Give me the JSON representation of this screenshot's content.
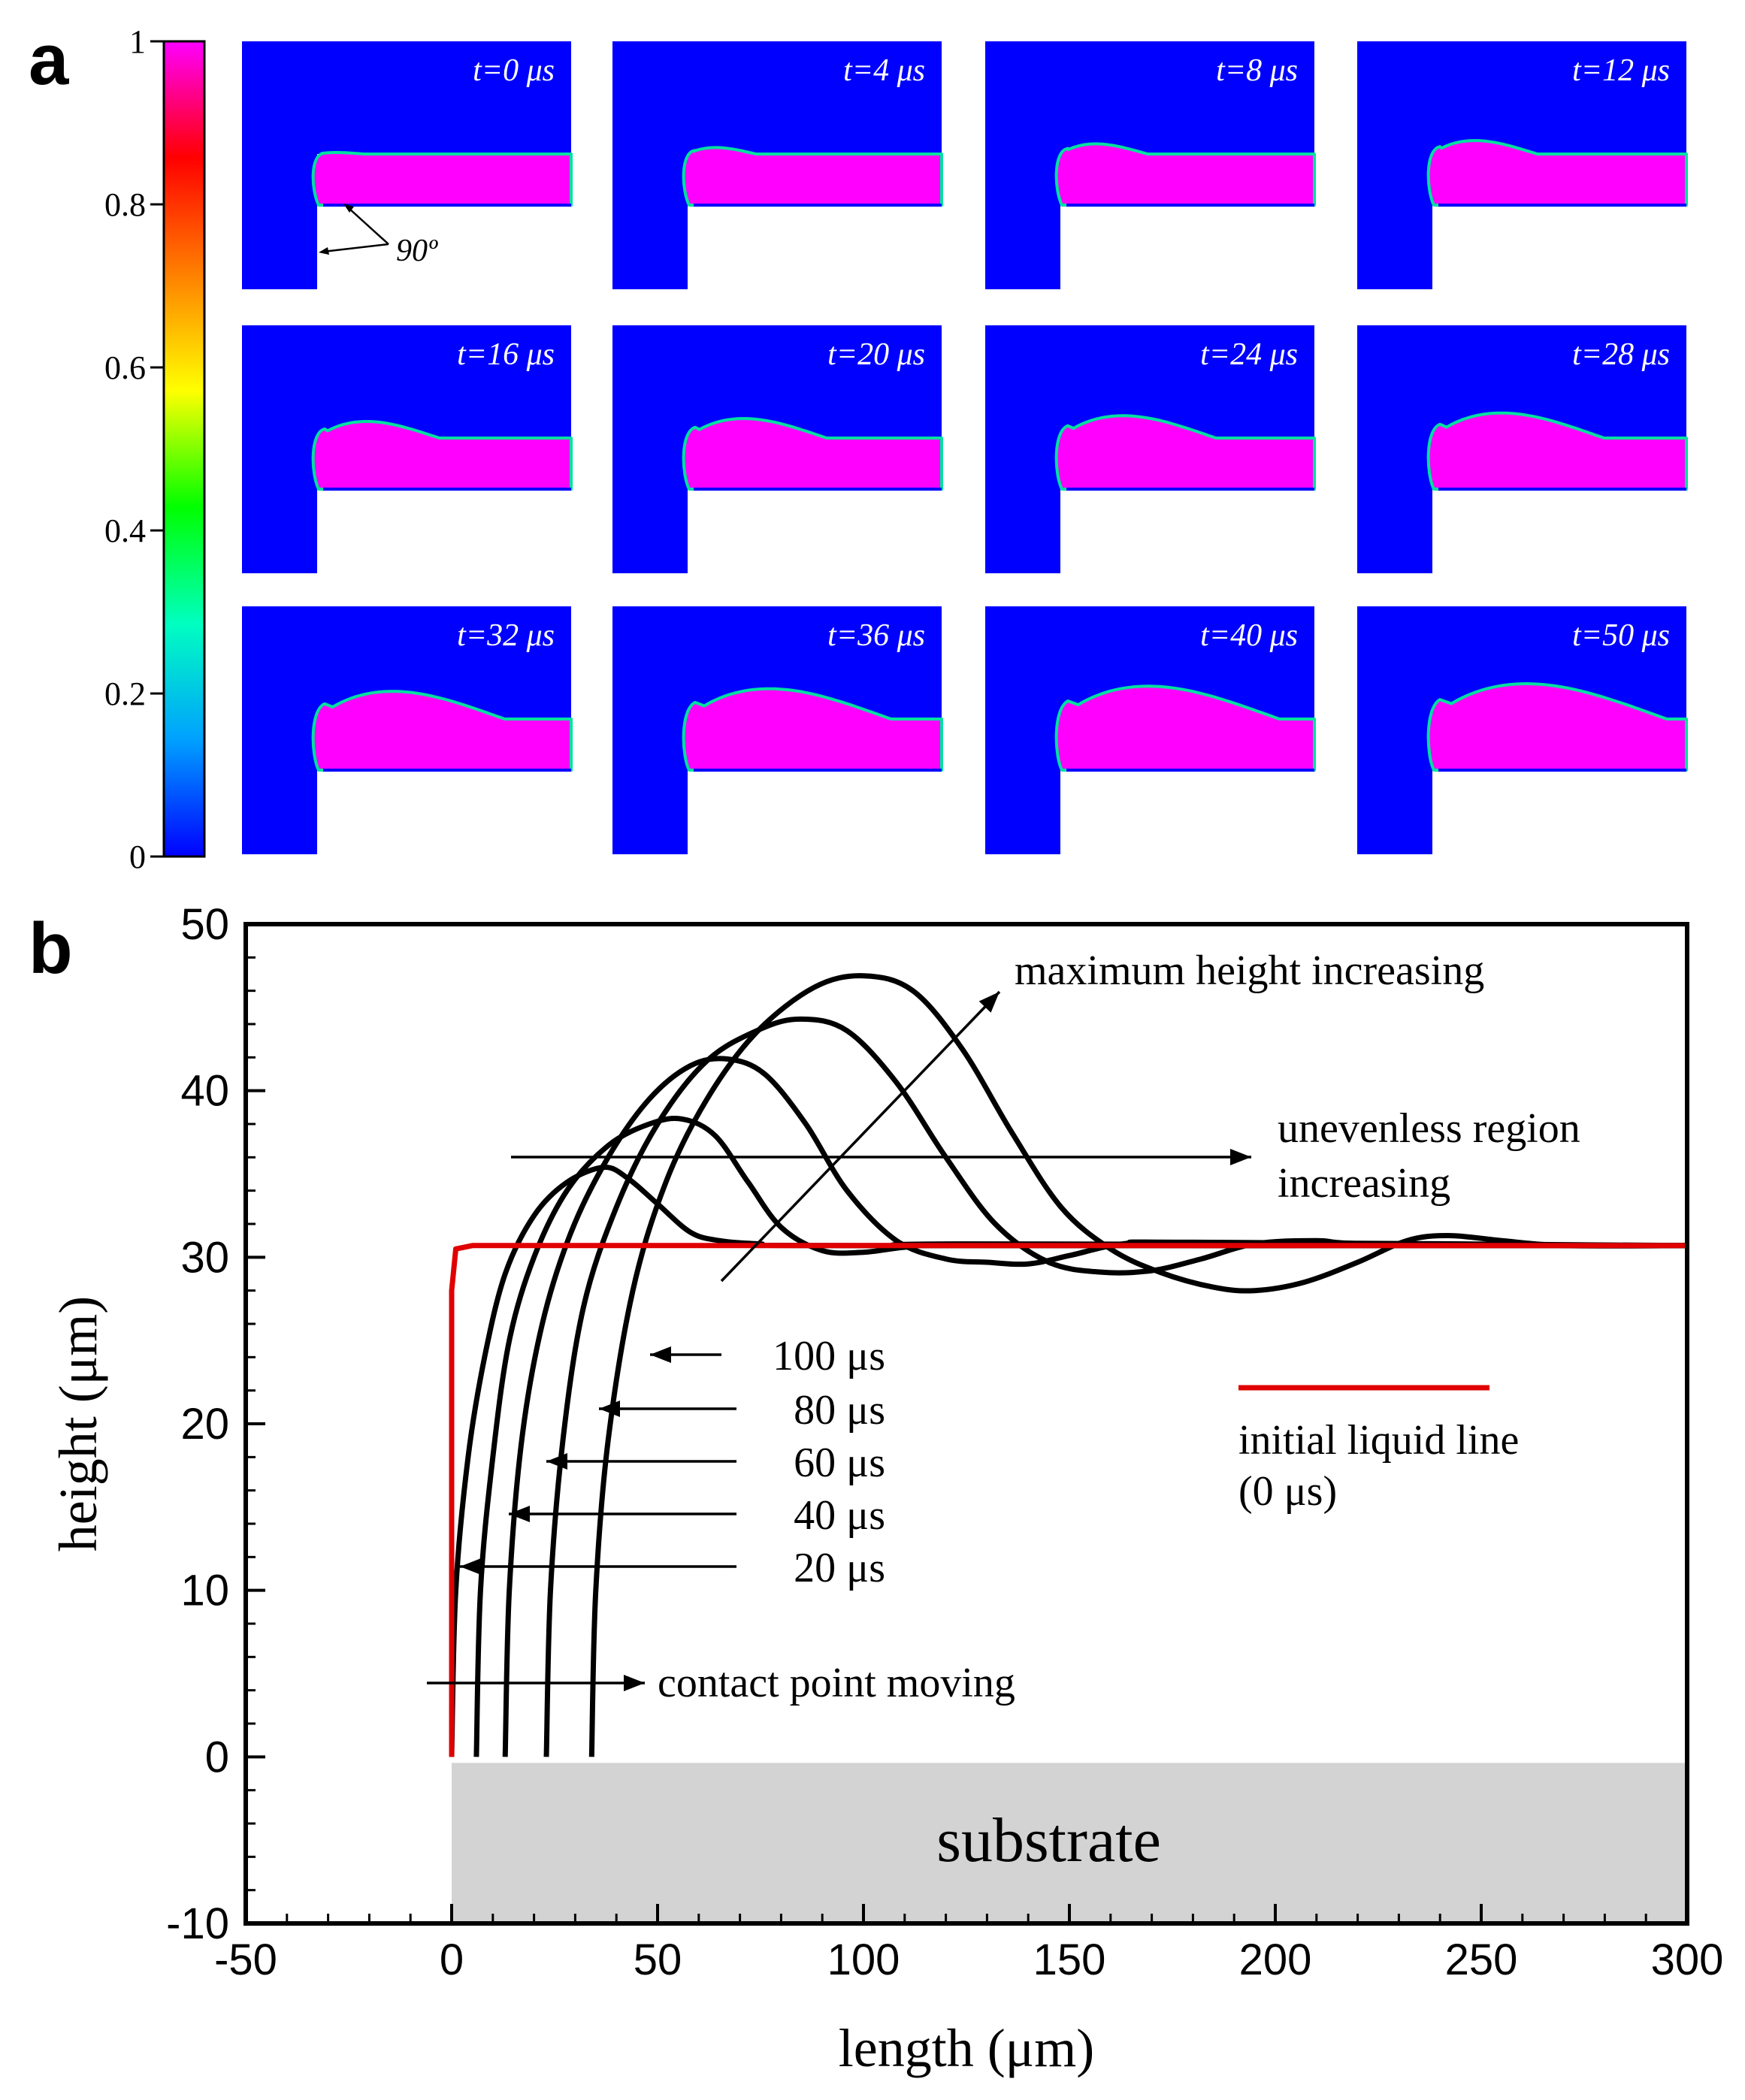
{
  "panel_a": {
    "letter": "a",
    "colorbar": {
      "ticks": [
        "0",
        "0.2",
        "0.4",
        "0.6",
        "0.8",
        "1"
      ],
      "stops": [
        "#0000ff",
        "#00a0ff",
        "#00ffc0",
        "#00ff00",
        "#ffff00",
        "#ff8000",
        "#ff0000",
        "#ff00ff"
      ]
    },
    "snapshot_times": [
      "t=0 μs",
      "t=4 μs",
      "t=8 μs",
      "t=12 μs",
      "t=16 μs",
      "t=20 μs",
      "t=24 μs",
      "t=28 μs",
      "t=32 μs",
      "t=36 μs",
      "t=40 μs",
      "t=50 μs"
    ],
    "angle_label": "90º",
    "colors": {
      "gas": "#0000ff",
      "liquid": "#ff00ff",
      "interface": "#00e0a0"
    }
  },
  "chart_data": {
    "type": "line",
    "panel_letter": "b",
    "xlabel": "length (μm)",
    "ylabel": "height (μm)",
    "xlim": [
      -50,
      300
    ],
    "ylim": [
      -10,
      50
    ],
    "xticks": [
      -50,
      0,
      50,
      100,
      150,
      200,
      250,
      300
    ],
    "yticks": [
      -10,
      0,
      10,
      20,
      30,
      40,
      50
    ],
    "series": [
      {
        "name": "initial liquid line (0 μs)",
        "color": "#e00000",
        "points": [
          [
            0,
            0
          ],
          [
            0,
            28
          ],
          [
            1,
            30.5
          ],
          [
            5,
            30.7
          ],
          [
            50,
            30.7
          ],
          [
            150,
            30.7
          ],
          [
            300,
            30.7
          ]
        ]
      },
      {
        "name": "20 μs",
        "color": "#000000",
        "points": [
          [
            0,
            0
          ],
          [
            1,
            10
          ],
          [
            4,
            18
          ],
          [
            8,
            24
          ],
          [
            13,
            29
          ],
          [
            20,
            32.5
          ],
          [
            28,
            34.5
          ],
          [
            37,
            35.4
          ],
          [
            43,
            34.7
          ],
          [
            50,
            33.2
          ],
          [
            58,
            31.5
          ],
          [
            65,
            31
          ],
          [
            75,
            30.8
          ],
          [
            90,
            30.7
          ],
          [
            300,
            30.7
          ]
        ]
      },
      {
        "name": "40 μs",
        "color": "#000000",
        "points": [
          [
            6,
            0
          ],
          [
            7,
            10
          ],
          [
            10,
            18
          ],
          [
            14,
            25
          ],
          [
            20,
            30
          ],
          [
            28,
            34
          ],
          [
            38,
            36.7
          ],
          [
            48,
            38
          ],
          [
            56,
            38.3
          ],
          [
            64,
            37.3
          ],
          [
            72,
            34.5
          ],
          [
            80,
            31.8
          ],
          [
            90,
            30.4
          ],
          [
            100,
            30.3
          ],
          [
            110,
            30.6
          ],
          [
            125,
            30.8
          ],
          [
            300,
            30.7
          ]
        ]
      },
      {
        "name": "60 μs",
        "color": "#000000",
        "points": [
          [
            13,
            0
          ],
          [
            14,
            10
          ],
          [
            17,
            19
          ],
          [
            22,
            26
          ],
          [
            29,
            31.5
          ],
          [
            38,
            36
          ],
          [
            48,
            39.5
          ],
          [
            58,
            41.5
          ],
          [
            67,
            41.9
          ],
          [
            76,
            41
          ],
          [
            86,
            38
          ],
          [
            96,
            34
          ],
          [
            108,
            31
          ],
          [
            120,
            29.9
          ],
          [
            130,
            29.7
          ],
          [
            140,
            29.6
          ],
          [
            150,
            30.1
          ],
          [
            163,
            30.8
          ],
          [
            180,
            30.9
          ],
          [
            300,
            30.7
          ]
        ]
      },
      {
        "name": "80 μs",
        "color": "#000000",
        "points": [
          [
            23,
            0
          ],
          [
            24,
            10
          ],
          [
            27,
            19
          ],
          [
            32,
            27
          ],
          [
            40,
            33
          ],
          [
            50,
            38
          ],
          [
            62,
            41.8
          ],
          [
            75,
            43.7
          ],
          [
            85,
            44.3
          ],
          [
            96,
            43.6
          ],
          [
            108,
            40.5
          ],
          [
            120,
            36
          ],
          [
            132,
            32
          ],
          [
            145,
            29.7
          ],
          [
            158,
            29.1
          ],
          [
            170,
            29.2
          ],
          [
            182,
            29.9
          ],
          [
            195,
            30.8
          ],
          [
            210,
            31
          ],
          [
            225,
            30.8
          ],
          [
            300,
            30.7
          ]
        ]
      },
      {
        "name": "100 μs",
        "color": "#000000",
        "points": [
          [
            34,
            0
          ],
          [
            35,
            10
          ],
          [
            38,
            19
          ],
          [
            44,
            28
          ],
          [
            52,
            34.5
          ],
          [
            62,
            39.5
          ],
          [
            74,
            43.5
          ],
          [
            88,
            46.2
          ],
          [
            100,
            46.9
          ],
          [
            112,
            46
          ],
          [
            124,
            42.5
          ],
          [
            136,
            37.5
          ],
          [
            148,
            33
          ],
          [
            160,
            30.5
          ],
          [
            172,
            29.1
          ],
          [
            185,
            28.2
          ],
          [
            195,
            28
          ],
          [
            207,
            28.5
          ],
          [
            220,
            29.7
          ],
          [
            232,
            31
          ],
          [
            242,
            31.3
          ],
          [
            255,
            31
          ],
          [
            270,
            30.7
          ],
          [
            300,
            30.7
          ]
        ]
      }
    ],
    "substrate": {
      "label": "substrate",
      "x_range": [
        0,
        300
      ],
      "y_range": [
        -10,
        0
      ],
      "color": "#d3d3d3"
    },
    "annotations": {
      "max_height": "maximum height increasing",
      "uneven_line1": "unevenless region",
      "uneven_line2": "increasing",
      "contact": "contact point moving",
      "legend_line1": "initial liquid line",
      "legend_line2": "(0 μs)"
    },
    "time_labels": [
      "100 μs",
      "80 μs",
      "60 μs",
      "40 μs",
      "20 μs"
    ]
  }
}
